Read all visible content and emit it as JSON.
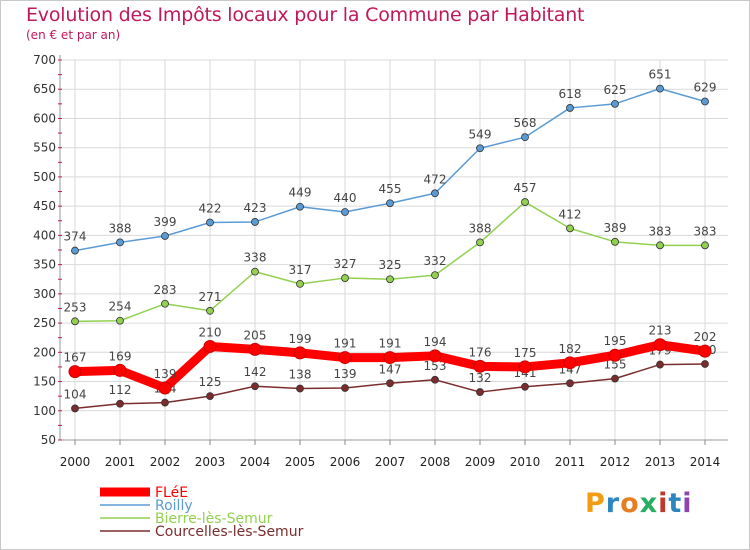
{
  "title": "Evolution des Impôts locaux pour la Commune par Habitant",
  "subtitle": "(en € et par an)",
  "brand": "Proxiti",
  "chart_data": {
    "type": "line",
    "x": [
      "2000",
      "2001",
      "2002",
      "2003",
      "2004",
      "2005",
      "2006",
      "2007",
      "2008",
      "2009",
      "2010",
      "2011",
      "2012",
      "2013",
      "2014"
    ],
    "ylim": [
      50,
      700
    ],
    "yticks": [
      50,
      100,
      150,
      200,
      250,
      300,
      350,
      400,
      450,
      500,
      550,
      600,
      650,
      700
    ],
    "grid": true,
    "legend": "bottom-left",
    "series": [
      {
        "name": "FLéE",
        "color": "#ff0000",
        "values": [
          167,
          169,
          139,
          210,
          205,
          199,
          191,
          191,
          194,
          176,
          175,
          182,
          195,
          213,
          202
        ]
      },
      {
        "name": "Roilly",
        "color": "#5b9bd5",
        "values": [
          374,
          388,
          399,
          422,
          423,
          449,
          440,
          455,
          472,
          549,
          568,
          618,
          625,
          651,
          629
        ]
      },
      {
        "name": "Bierre-lès-Semur",
        "color": "#92d050",
        "values": [
          253,
          254,
          283,
          271,
          338,
          317,
          327,
          325,
          332,
          388,
          457,
          412,
          389,
          383,
          383
        ]
      },
      {
        "name": "Courcelles-lès-Semur",
        "color": "#7b2c2c",
        "values": [
          104,
          112,
          114,
          125,
          142,
          138,
          139,
          147,
          153,
          132,
          141,
          147,
          155,
          179,
          180
        ]
      }
    ]
  }
}
